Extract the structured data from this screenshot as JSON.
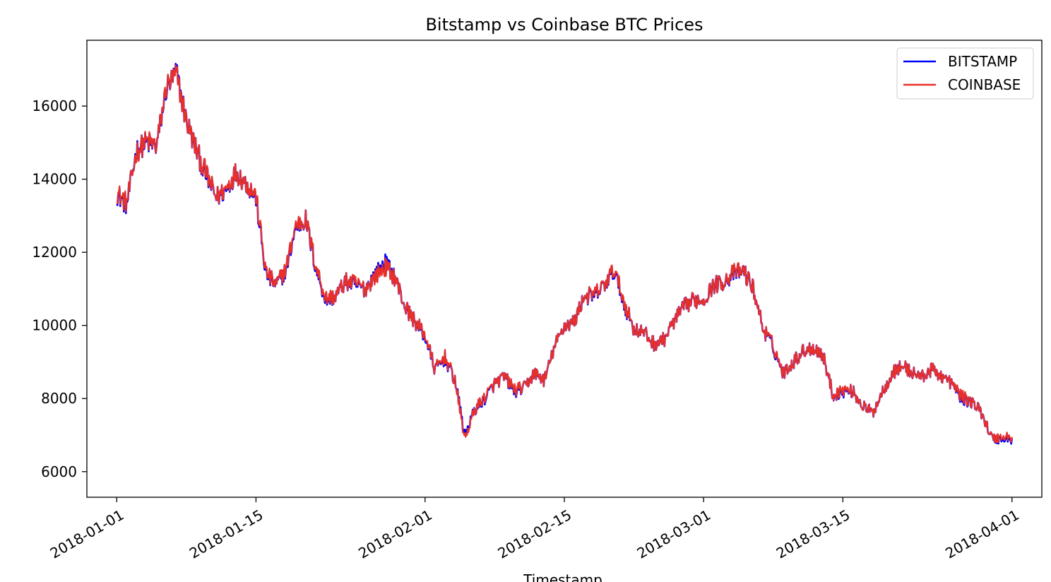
{
  "chart_data": {
    "type": "line",
    "title": "Bitstamp vs Coinbase BTC Prices",
    "xlabel": "Timestamp",
    "ylabel": "",
    "x_range": [
      "2017-12-29",
      "2018-04-04"
    ],
    "ylim": [
      5300,
      17800
    ],
    "x_ticks": [
      "2018-01-01",
      "2018-01-15",
      "2018-02-01",
      "2018-02-15",
      "2018-03-01",
      "2018-03-15",
      "2018-04-01"
    ],
    "y_ticks": [
      6000,
      8000,
      10000,
      12000,
      14000,
      16000
    ],
    "y_tick_labels": [
      "6000",
      "8000",
      "10000",
      "12000",
      "14000",
      "16000"
    ],
    "legend": {
      "position": "top-right"
    },
    "grid": false,
    "x": [
      "2018-01-01",
      "2018-01-02",
      "2018-01-03",
      "2018-01-04",
      "2018-01-05",
      "2018-01-06",
      "2018-01-07",
      "2018-01-08",
      "2018-01-09",
      "2018-01-10",
      "2018-01-11",
      "2018-01-12",
      "2018-01-13",
      "2018-01-14",
      "2018-01-15",
      "2018-01-16",
      "2018-01-17",
      "2018-01-18",
      "2018-01-19",
      "2018-01-20",
      "2018-01-21",
      "2018-01-22",
      "2018-01-23",
      "2018-01-24",
      "2018-01-25",
      "2018-01-26",
      "2018-01-27",
      "2018-01-28",
      "2018-01-29",
      "2018-01-30",
      "2018-01-31",
      "2018-02-01",
      "2018-02-02",
      "2018-02-03",
      "2018-02-04",
      "2018-02-05",
      "2018-02-06",
      "2018-02-07",
      "2018-02-08",
      "2018-02-09",
      "2018-02-10",
      "2018-02-11",
      "2018-02-12",
      "2018-02-13",
      "2018-02-14",
      "2018-02-15",
      "2018-02-16",
      "2018-02-17",
      "2018-02-18",
      "2018-02-19",
      "2018-02-20",
      "2018-02-21",
      "2018-02-22",
      "2018-02-23",
      "2018-02-24",
      "2018-02-25",
      "2018-02-26",
      "2018-02-27",
      "2018-02-28",
      "2018-03-01",
      "2018-03-02",
      "2018-03-03",
      "2018-03-04",
      "2018-03-05",
      "2018-03-06",
      "2018-03-07",
      "2018-03-08",
      "2018-03-09",
      "2018-03-10",
      "2018-03-11",
      "2018-03-12",
      "2018-03-13",
      "2018-03-14",
      "2018-03-15",
      "2018-03-16",
      "2018-03-17",
      "2018-03-18",
      "2018-03-19",
      "2018-03-20",
      "2018-03-21",
      "2018-03-22",
      "2018-03-23",
      "2018-03-24",
      "2018-03-25",
      "2018-03-26",
      "2018-03-27",
      "2018-03-28",
      "2018-03-29",
      "2018-03-30",
      "2018-03-31"
    ],
    "series": [
      {
        "name": "BITSTAMP",
        "color": "#0000ff",
        "values": [
          13600,
          13300,
          14800,
          15000,
          14900,
          16500,
          16900,
          15600,
          14800,
          14100,
          13500,
          13700,
          14200,
          13900,
          13500,
          11400,
          11100,
          11500,
          12700,
          12900,
          11600,
          10700,
          10800,
          11200,
          11100,
          11000,
          11400,
          11700,
          11300,
          10500,
          10100,
          9700,
          8800,
          9100,
          8500,
          7000,
          7700,
          8000,
          8400,
          8600,
          8200,
          8300,
          8700,
          8500,
          9400,
          10000,
          10100,
          10800,
          10800,
          11100,
          11500,
          10600,
          9900,
          9800,
          9500,
          9600,
          10100,
          10500,
          10700,
          10700,
          11100,
          11200,
          11400,
          11500,
          11000,
          9900,
          9400,
          8700,
          9000,
          9300,
          9400,
          9200,
          8100,
          8200,
          8200,
          7800,
          7600,
          8200,
          8700,
          8900,
          8700,
          8600,
          8800,
          8600,
          8400,
          8000,
          7900,
          7600,
          6900,
          6900
        ]
      },
      {
        "name": "COINBASE",
        "color": "#e8302a",
        "values": [
          13650,
          13350,
          14750,
          15050,
          14900,
          16550,
          16850,
          15600,
          14800,
          14150,
          13500,
          13750,
          14200,
          13900,
          13550,
          11450,
          11100,
          11550,
          12750,
          12900,
          11650,
          10750,
          10800,
          11200,
          11150,
          11000,
          11350,
          11600,
          11300,
          10500,
          10100,
          9750,
          8800,
          9150,
          8500,
          6900,
          7700,
          8050,
          8400,
          8600,
          8250,
          8300,
          8700,
          8500,
          9400,
          10000,
          10100,
          10800,
          10850,
          11100,
          11550,
          10650,
          9900,
          9800,
          9500,
          9600,
          10100,
          10500,
          10700,
          10700,
          11100,
          11200,
          11450,
          11500,
          11000,
          9900,
          9450,
          8700,
          9000,
          9300,
          9400,
          9200,
          8100,
          8250,
          8200,
          7800,
          7600,
          8200,
          8700,
          8900,
          8700,
          8600,
          8800,
          8600,
          8400,
          8050,
          7900,
          7600,
          6900,
          6950
        ]
      }
    ]
  }
}
